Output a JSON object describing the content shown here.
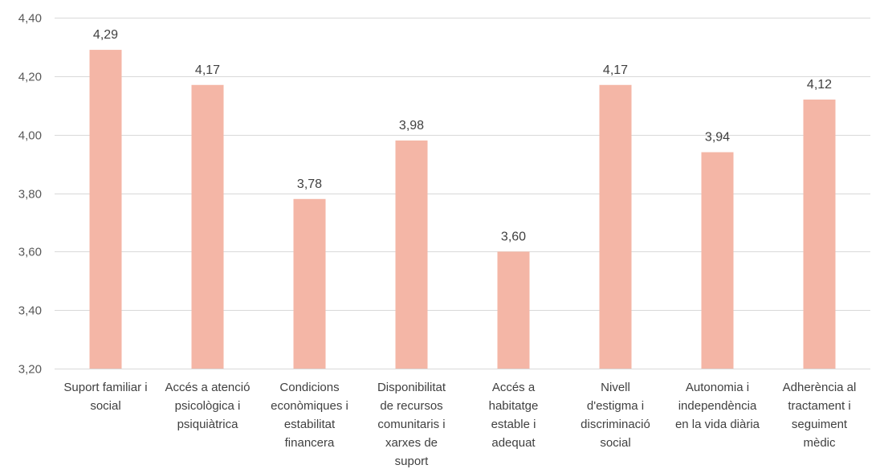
{
  "chart_data": {
    "type": "bar",
    "categories": [
      [
        "Suport familiar i",
        "social"
      ],
      [
        "Accés a atenció",
        "psicològica i",
        "psiquiàtrica"
      ],
      [
        "Condicions",
        "econòmiques i",
        "estabilitat",
        "financera"
      ],
      [
        "Disponibilitat",
        "de recursos",
        "comunitaris i",
        "xarxes de",
        "suport"
      ],
      [
        "Accés a",
        "habitatge",
        "estable i",
        "adequat"
      ],
      [
        "Nivell",
        "d'estigma i",
        "discriminació",
        "social"
      ],
      [
        "Autonomia i",
        "independència",
        "en la vida diària"
      ],
      [
        "Adherència al",
        "tractament i",
        "seguiment",
        "mèdic"
      ]
    ],
    "values": [
      4.29,
      4.17,
      3.78,
      3.98,
      3.6,
      4.17,
      3.94,
      4.12
    ],
    "value_labels": [
      "4,29",
      "4,17",
      "3,78",
      "3,98",
      "3,60",
      "4,17",
      "3,94",
      "4,12"
    ],
    "yticks": [
      3.2,
      3.4,
      3.6,
      3.8,
      4.0,
      4.2,
      4.4
    ],
    "ytick_labels": [
      "3,20",
      "3,40",
      "3,60",
      "3,80",
      "4,00",
      "4,20",
      "4,40"
    ],
    "ylim": [
      3.2,
      4.4
    ],
    "grid": true,
    "bar_color": "#f4b6a6",
    "title": "",
    "xlabel": "",
    "ylabel": ""
  }
}
